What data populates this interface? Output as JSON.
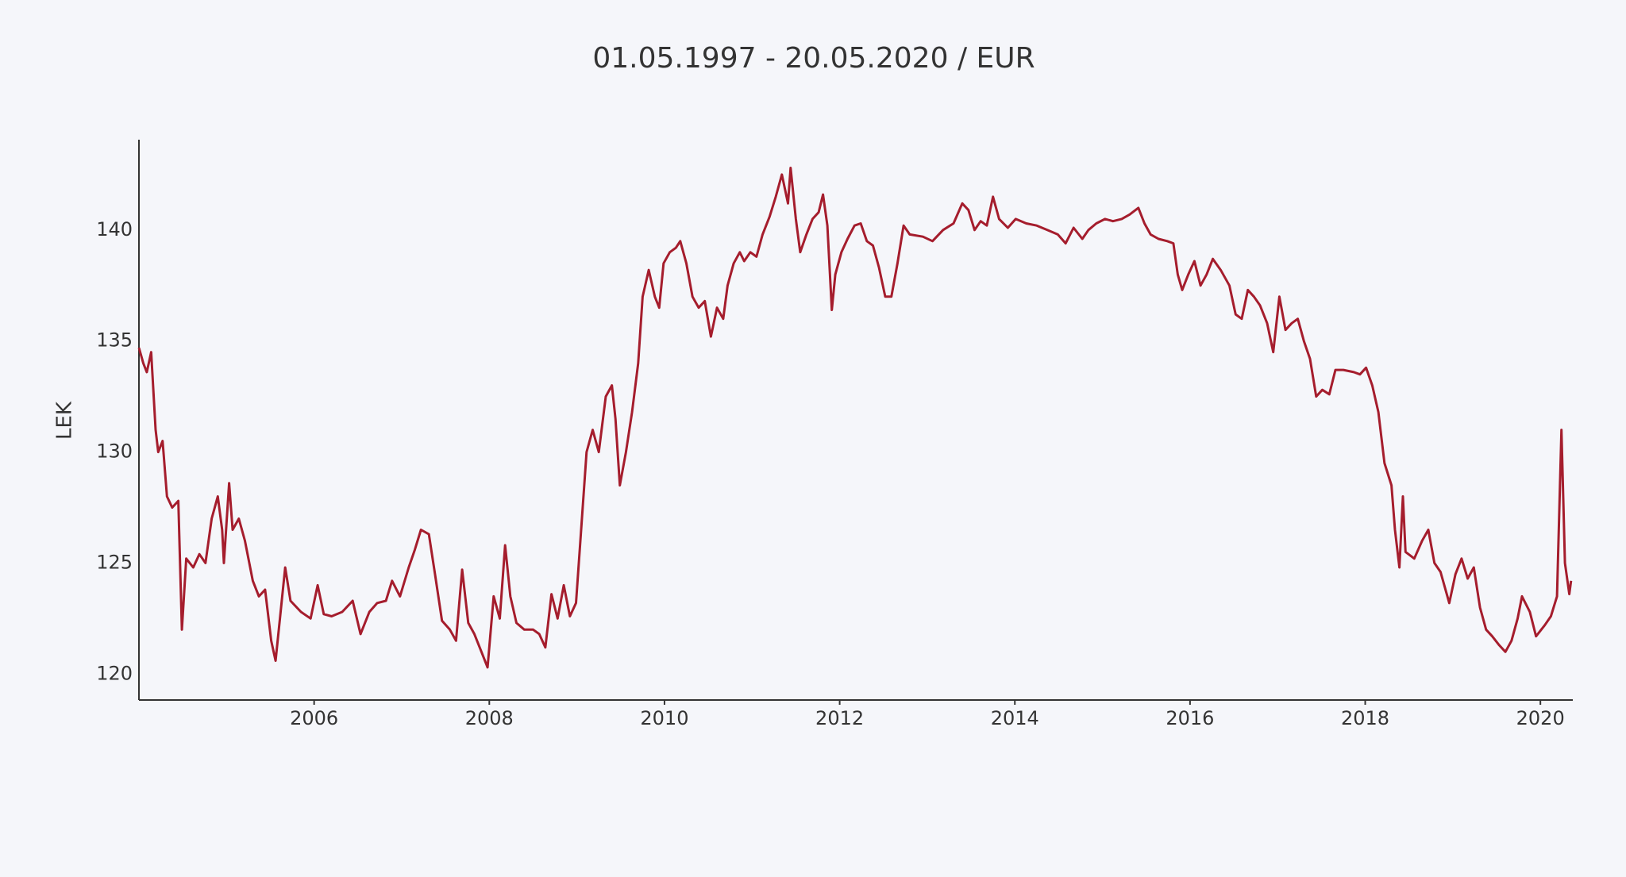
{
  "chart_data": {
    "type": "line",
    "title": "01.05.1997 - 20.05.2020 / EUR",
    "ylabel": "LEK",
    "xlim": [
      2004.0,
      2020.37
    ],
    "ylim": [
      118.83,
      144.07
    ],
    "xticks": [
      2006,
      2008,
      2010,
      2012,
      2014,
      2016,
      2018,
      2020
    ],
    "yticks": [
      120,
      125,
      130,
      135,
      140
    ],
    "grid": false,
    "x": [
      2004.0,
      2004.05,
      2004.09,
      2004.14,
      2004.19,
      2004.22,
      2004.27,
      2004.32,
      2004.38,
      2004.45,
      2004.49,
      2004.54,
      2004.62,
      2004.69,
      2004.76,
      2004.83,
      2004.9,
      2004.95,
      2004.97,
      2005.03,
      2005.07,
      2005.14,
      2005.21,
      2005.3,
      2005.37,
      2005.44,
      2005.51,
      2005.56,
      2005.61,
      2005.67,
      2005.73,
      2005.85,
      2005.96,
      2006.04,
      2006.11,
      2006.2,
      2006.32,
      2006.44,
      2006.53,
      2006.63,
      2006.72,
      2006.82,
      2006.89,
      2006.98,
      2007.08,
      2007.15,
      2007.22,
      2007.31,
      2007.38,
      2007.46,
      2007.55,
      2007.62,
      2007.69,
      2007.76,
      2007.83,
      2007.91,
      2007.98,
      2008.05,
      2008.12,
      2008.18,
      2008.24,
      2008.31,
      2008.4,
      2008.5,
      2008.57,
      2008.64,
      2008.71,
      2008.78,
      2008.85,
      2008.92,
      2008.99,
      2009.04,
      2009.11,
      2009.18,
      2009.25,
      2009.33,
      2009.4,
      2009.44,
      2009.49,
      2009.56,
      2009.63,
      2009.7,
      2009.75,
      2009.82,
      2009.89,
      2009.94,
      2009.99,
      2010.06,
      2010.13,
      2010.18,
      2010.25,
      2010.32,
      2010.39,
      2010.46,
      2010.53,
      2010.6,
      2010.67,
      2010.72,
      2010.79,
      2010.86,
      2010.91,
      2010.98,
      2011.05,
      2011.12,
      2011.2,
      2011.27,
      2011.34,
      2011.41,
      2011.44,
      2011.5,
      2011.55,
      2011.62,
      2011.69,
      2011.76,
      2011.81,
      2011.86,
      2011.91,
      2011.95,
      2012.02,
      2012.09,
      2012.17,
      2012.24,
      2012.31,
      2012.38,
      2012.45,
      2012.52,
      2012.59,
      2012.66,
      2012.73,
      2012.8,
      2012.95,
      2013.06,
      2013.18,
      2013.3,
      2013.4,
      2013.47,
      2013.54,
      2013.61,
      2013.68,
      2013.75,
      2013.82,
      2013.92,
      2014.01,
      2014.13,
      2014.25,
      2014.37,
      2014.49,
      2014.58,
      2014.67,
      2014.77,
      2014.84,
      2014.93,
      2015.03,
      2015.12,
      2015.22,
      2015.31,
      2015.41,
      2015.48,
      2015.55,
      2015.64,
      2015.74,
      2015.81,
      2015.86,
      2015.91,
      2015.98,
      2016.05,
      2016.12,
      2016.19,
      2016.26,
      2016.35,
      2016.45,
      2016.52,
      2016.59,
      2016.66,
      2016.73,
      2016.8,
      2016.88,
      2016.95,
      2017.02,
      2017.09,
      2017.16,
      2017.23,
      2017.3,
      2017.37,
      2017.44,
      2017.51,
      2017.59,
      2017.66,
      2017.75,
      2017.87,
      2017.94,
      2018.01,
      2018.08,
      2018.15,
      2018.22,
      2018.3,
      2018.34,
      2018.39,
      2018.43,
      2018.46,
      2018.56,
      2018.65,
      2018.72,
      2018.79,
      2018.86,
      2018.96,
      2019.03,
      2019.1,
      2019.17,
      2019.24,
      2019.31,
      2019.38,
      2019.45,
      2019.53,
      2019.6,
      2019.67,
      2019.74,
      2019.79,
      2019.88,
      2019.95,
      2020.05,
      2020.12,
      2020.19,
      2020.24,
      2020.28,
      2020.33,
      2020.35
    ],
    "series": [
      {
        "name": "EUR",
        "color": "#a51d2d",
        "values": [
          134.7,
          134.0,
          133.6,
          134.5,
          131.0,
          130.0,
          130.5,
          128.0,
          127.5,
          127.8,
          122.0,
          125.2,
          124.8,
          125.4,
          125.0,
          127.0,
          128.0,
          126.5,
          125.0,
          128.6,
          126.5,
          127.0,
          126.0,
          124.2,
          123.5,
          123.8,
          121.5,
          120.6,
          122.5,
          124.8,
          123.3,
          122.8,
          122.5,
          124.0,
          122.7,
          122.6,
          122.8,
          123.3,
          121.8,
          122.8,
          123.2,
          123.3,
          124.2,
          123.5,
          124.8,
          125.6,
          126.5,
          126.3,
          124.5,
          122.4,
          122.0,
          121.5,
          124.7,
          122.3,
          121.8,
          121.0,
          120.3,
          123.5,
          122.5,
          125.8,
          123.5,
          122.3,
          122.0,
          122.0,
          121.8,
          121.2,
          123.6,
          122.5,
          124.0,
          122.6,
          123.2,
          126.0,
          130.0,
          131.0,
          130.0,
          132.5,
          133.0,
          131.5,
          128.5,
          130.0,
          131.8,
          134.0,
          137.0,
          138.2,
          137.0,
          136.5,
          138.5,
          139.0,
          139.2,
          139.5,
          138.5,
          137.0,
          136.5,
          136.8,
          135.2,
          136.5,
          136.0,
          137.5,
          138.5,
          139.0,
          138.6,
          139.0,
          138.8,
          139.8,
          140.6,
          141.5,
          142.5,
          141.2,
          142.8,
          140.5,
          139.0,
          139.8,
          140.5,
          140.8,
          141.6,
          140.2,
          136.4,
          138.0,
          139.0,
          139.6,
          140.2,
          140.3,
          139.5,
          139.3,
          138.3,
          137.0,
          137.0,
          138.5,
          140.2,
          139.8,
          139.7,
          139.5,
          140.0,
          140.3,
          141.2,
          140.9,
          140.0,
          140.4,
          140.2,
          141.5,
          140.5,
          140.1,
          140.5,
          140.3,
          140.2,
          140.0,
          139.8,
          139.4,
          140.1,
          139.6,
          140.0,
          140.3,
          140.5,
          140.4,
          140.5,
          140.7,
          141.0,
          140.3,
          139.8,
          139.6,
          139.5,
          139.4,
          138.0,
          137.3,
          138.0,
          138.6,
          137.5,
          138.0,
          138.7,
          138.2,
          137.5,
          136.2,
          136.0,
          137.3,
          137.0,
          136.6,
          135.8,
          134.5,
          137.0,
          135.5,
          135.8,
          136.0,
          135.0,
          134.2,
          132.5,
          132.8,
          132.6,
          133.7,
          133.7,
          133.6,
          133.5,
          133.8,
          133.0,
          131.8,
          129.5,
          128.5,
          126.5,
          124.8,
          128.0,
          125.5,
          125.2,
          126.0,
          126.5,
          125.0,
          124.6,
          123.2,
          124.5,
          125.2,
          124.3,
          124.8,
          123.0,
          122.0,
          121.7,
          121.3,
          121.0,
          121.5,
          122.5,
          123.5,
          122.8,
          121.7,
          122.2,
          122.6,
          123.5,
          131.0,
          125.0,
          123.6,
          124.2
        ]
      }
    ]
  }
}
